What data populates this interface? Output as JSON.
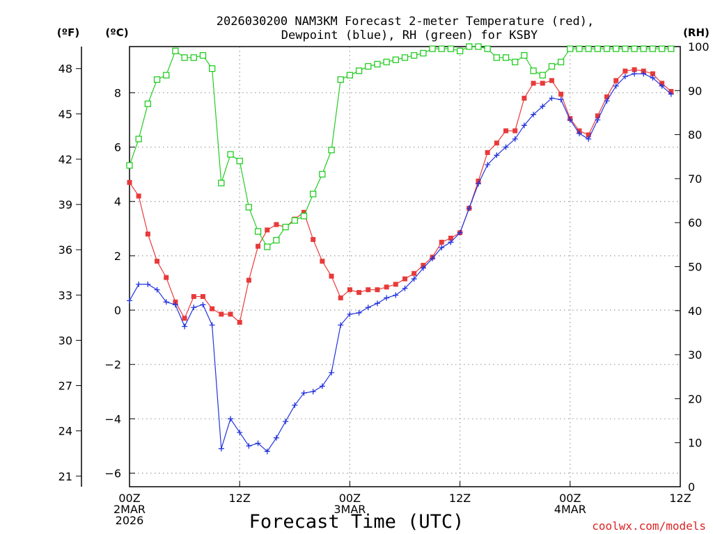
{
  "chart_data": {
    "type": "line",
    "title_line1": "2026030200 NAM3KM Forecast 2-meter Temperature (red),",
    "title_line2": "Dewpoint (blue), RH (green) for KSBY",
    "xlabel": "Forecast Time (UTC)",
    "credit": "coolwx.com/models",
    "units": {
      "fahrenheit": "(ºF)",
      "celsius": "(ºC)",
      "rh": "(RH)"
    },
    "x_range_hours": [
      0,
      60
    ],
    "x_ticks": [
      {
        "hour": 0,
        "lines": [
          "00Z",
          "2MAR",
          "2026"
        ]
      },
      {
        "hour": 12,
        "lines": [
          "12Z"
        ]
      },
      {
        "hour": 24,
        "lines": [
          "00Z",
          "3MAR"
        ]
      },
      {
        "hour": 36,
        "lines": [
          "12Z"
        ]
      },
      {
        "hour": 48,
        "lines": [
          "00Z",
          "4MAR"
        ]
      },
      {
        "hour": 60,
        "lines": [
          "12Z"
        ]
      }
    ],
    "celsius_axis": {
      "range": [
        -6.5,
        9.7
      ],
      "ticks": [
        -6,
        -4,
        -2,
        0,
        2,
        4,
        6,
        8
      ],
      "tick_labels": [
        "−6",
        "−4",
        "−2",
        "0",
        "2",
        "4",
        "6",
        "8"
      ]
    },
    "fahrenheit_axis": {
      "ticks": [
        21,
        24,
        27,
        30,
        33,
        36,
        39,
        42,
        45,
        48
      ],
      "tick_labels": [
        "21",
        "24",
        "27",
        "30",
        "33",
        "36",
        "39",
        "42",
        "45",
        "48"
      ]
    },
    "rh_axis": {
      "range": [
        0,
        100
      ],
      "ticks": [
        0,
        10,
        20,
        30,
        40,
        50,
        60,
        70,
        80,
        90,
        100
      ],
      "tick_labels": [
        "0",
        "10",
        "20",
        "30",
        "40",
        "50",
        "60",
        "70",
        "80",
        "90",
        "100"
      ]
    },
    "colors": {
      "temperature": "#e83a3a",
      "dewpoint": "#2233dd",
      "rh": "#22cc22",
      "grid": "#999999"
    },
    "series": [
      {
        "name": "Temperature",
        "unit": "C",
        "values": [
          4.7,
          4.2,
          2.8,
          1.8,
          1.2,
          0.3,
          -0.3,
          0.5,
          0.5,
          0.05,
          -0.15,
          -0.15,
          -0.45,
          1.1,
          2.35,
          2.95,
          3.15,
          3.05,
          3.35,
          3.6,
          2.6,
          1.8,
          1.25,
          0.45,
          0.75,
          0.65,
          0.75,
          0.75,
          0.85,
          0.95,
          1.15,
          1.35,
          1.65,
          1.95,
          2.5,
          2.65,
          2.85,
          3.75,
          4.75,
          5.8,
          6.15,
          6.6,
          6.6,
          7.8,
          8.35,
          8.35,
          8.45,
          7.95,
          7.05,
          6.6,
          6.45,
          7.15,
          7.85,
          8.45,
          8.8,
          8.85,
          8.8,
          8.7,
          8.35,
          8.05
        ]
      },
      {
        "name": "Dewpoint",
        "unit": "C",
        "values": [
          0.35,
          0.95,
          0.95,
          0.75,
          0.3,
          0.2,
          -0.6,
          0.1,
          0.2,
          -0.55,
          -5.1,
          -4.0,
          -4.5,
          -5.0,
          -4.9,
          -5.2,
          -4.7,
          -4.1,
          -3.5,
          -3.05,
          -3.0,
          -2.8,
          -2.3,
          -0.55,
          -0.15,
          -0.1,
          0.1,
          0.25,
          0.45,
          0.55,
          0.8,
          1.15,
          1.55,
          1.9,
          2.3,
          2.5,
          2.85,
          3.75,
          4.65,
          5.35,
          5.7,
          6.0,
          6.3,
          6.8,
          7.2,
          7.5,
          7.8,
          7.75,
          7.0,
          6.5,
          6.3,
          7.0,
          7.7,
          8.25,
          8.6,
          8.7,
          8.7,
          8.55,
          8.25,
          7.95
        ]
      },
      {
        "name": "RH",
        "unit": "%",
        "values": [
          73,
          79,
          87,
          92.5,
          93.5,
          99,
          97.5,
          97.5,
          98,
          95,
          69,
          75.5,
          74,
          63.5,
          58,
          54.5,
          56,
          59,
          60.5,
          61.5,
          66.5,
          71,
          76.5,
          92.5,
          93.5,
          94.5,
          95.5,
          96,
          96.5,
          97,
          97.5,
          98,
          98.5,
          99.5,
          99.5,
          99.5,
          99,
          100,
          100,
          99.5,
          97.5,
          97.5,
          96.5,
          98,
          94.5,
          93.5,
          95.5,
          96.5,
          99.5,
          99.5,
          99.5,
          99.5,
          99.5,
          99.5,
          99.5,
          99.5,
          99.5,
          99.5,
          99.5,
          99.5
        ]
      }
    ]
  }
}
